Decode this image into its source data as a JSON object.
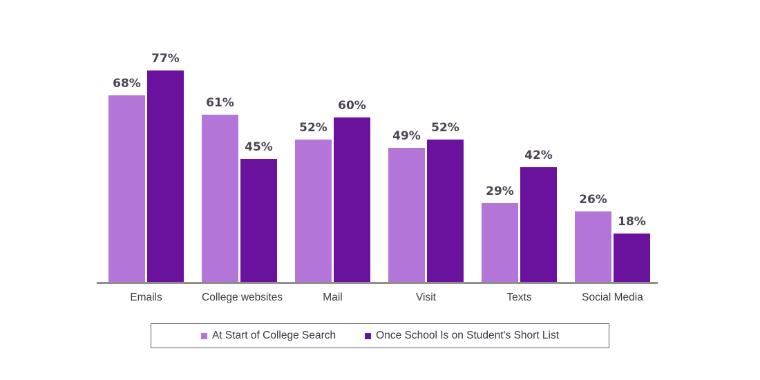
{
  "chart_data": {
    "type": "bar",
    "title": "",
    "xlabel": "",
    "ylabel": "",
    "ylim": [
      0,
      100
    ],
    "grid": false,
    "legend_position": "bottom",
    "value_suffix": "%",
    "categories": [
      "Emails",
      "College websites",
      "Mail",
      "Visit",
      "Texts",
      "Social Media"
    ],
    "series": [
      {
        "name": "At Start of College Search",
        "color": "#b475d8",
        "values": [
          68,
          61,
          52,
          49,
          29,
          26
        ],
        "labels": [
          "68%",
          "61%",
          "52%",
          "49%",
          "29%",
          "26%"
        ]
      },
      {
        "name": "Once School Is on Student's Short List",
        "color": "#6a119e",
        "values": [
          77,
          45,
          60,
          52,
          42,
          18
        ],
        "labels": [
          "77%",
          "45%",
          "60%",
          "52%",
          "42%",
          "18%"
        ]
      }
    ]
  },
  "style_colors": {
    "value_label": "#4b4352",
    "category_label": "#3d3c42",
    "axis_line": "#8f8f8f",
    "legend_border": "#5b5563"
  }
}
